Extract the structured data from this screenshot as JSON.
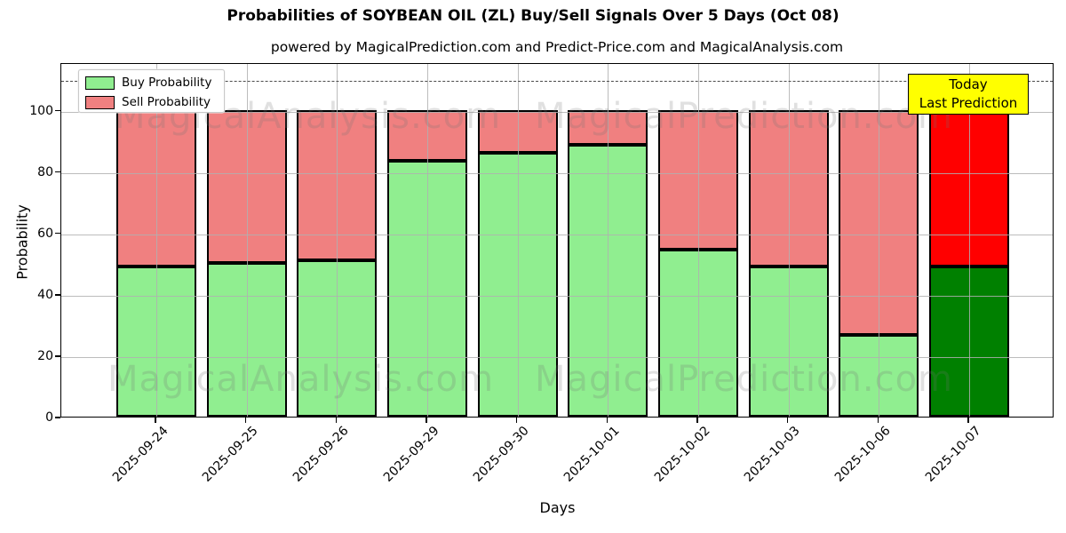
{
  "figure": {
    "title": "Probabilities of SOYBEAN OIL (ZL) Buy/Sell Signals Over 5 Days (Oct 08)",
    "subtitle": "powered by MagicalPrediction.com and Predict-Price.com and MagicalAnalysis.com"
  },
  "chart_data": {
    "type": "bar",
    "stacked": true,
    "title": "Probabilities of SOYBEAN OIL (ZL) Buy/Sell Signals Over 5 Days (Oct 08)",
    "subtitle": "powered by MagicalPrediction.com and Predict-Price.com and MagicalAnalysis.com",
    "xlabel": "Days",
    "ylabel": "Probability",
    "ylim": [
      0,
      115.5
    ],
    "yticks": [
      0,
      20,
      40,
      60,
      80,
      100
    ],
    "grid": true,
    "legend_position": "upper left",
    "categories": [
      "2025-09-24",
      "2025-09-25",
      "2025-09-26",
      "2025-09-29",
      "2025-09-30",
      "2025-10-01",
      "2025-10-02",
      "2025-10-03",
      "2025-10-06",
      "2025-10-07"
    ],
    "series": [
      {
        "name": "Buy Probability",
        "color": "#90ee90",
        "today_color": "#008000",
        "values": [
          49,
          50,
          51,
          83.5,
          86,
          88.5,
          54.5,
          49,
          26.5,
          49
        ]
      },
      {
        "name": "Sell Probability",
        "color": "#f08080",
        "today_color": "#ff0000",
        "values": [
          51,
          50,
          49,
          16.5,
          14,
          11.5,
          45.5,
          51,
          73.5,
          51
        ]
      }
    ],
    "today_index": 9,
    "dashed_line_y": 110,
    "annotation": {
      "lines": [
        "Today",
        "Last Prediction"
      ],
      "bg_color": "#ffff00",
      "position": "upper right"
    }
  },
  "legend": {
    "items": [
      {
        "label": "Buy Probability",
        "color": "#90ee90"
      },
      {
        "label": "Sell Probability",
        "color": "#f08080"
      }
    ]
  },
  "annotation": {
    "line1": "Today",
    "line2": "Last Prediction"
  },
  "watermarks": {
    "analysis": "MagicalAnalysis.com",
    "prediction": "MagicalPrediction.com"
  }
}
